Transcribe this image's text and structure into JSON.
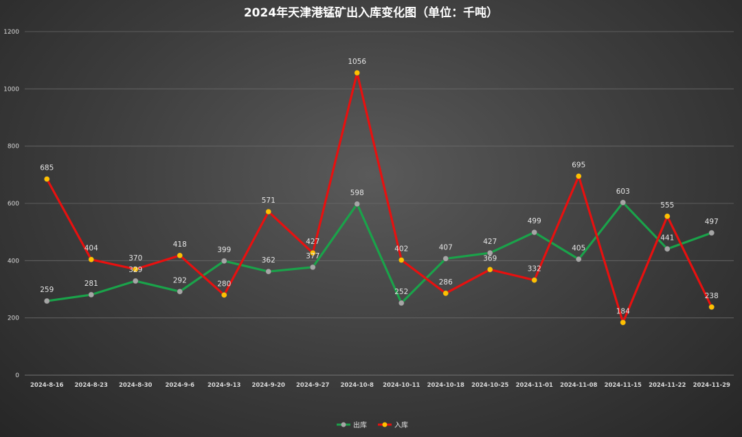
{
  "chart_data": {
    "type": "line",
    "title": "2024年天津港锰矿出入库变化图（单位：千吨）",
    "categories": [
      "2024-8-16",
      "2024-8-23",
      "2024-8-30",
      "2024-9-6",
      "2024-9-13",
      "2024-9-20",
      "2024-9-27",
      "2024-10-8",
      "2024-10-11",
      "2024-10-18",
      "2024-10-25",
      "2024-11-01",
      "2024-11-08",
      "2024-11-15",
      "2024-11-22",
      "2024-11-29"
    ],
    "series": [
      {
        "name": "出库",
        "color": "#1aa34a",
        "marker_color": "#a6a6a6",
        "values": [
          259,
          281,
          329,
          292,
          399,
          362,
          377,
          598,
          252,
          407,
          427,
          499,
          405,
          603,
          441,
          497
        ]
      },
      {
        "name": "入库",
        "color": "#e8100f",
        "marker_color": "#ffc000",
        "values": [
          685,
          404,
          370,
          418,
          280,
          571,
          427,
          1056,
          402,
          286,
          369,
          332,
          695,
          184,
          555,
          238
        ]
      }
    ],
    "ylim": [
      0,
      1200
    ],
    "yticks": [
      0,
      200,
      400,
      600,
      800,
      1000,
      1200
    ],
    "grid": true,
    "legend_position": "bottom"
  }
}
